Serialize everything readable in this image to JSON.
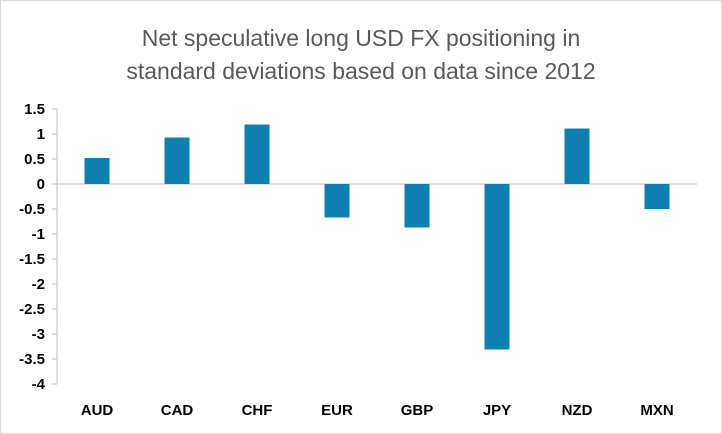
{
  "chart_data": {
    "type": "bar",
    "title_lines": [
      "Net speculative long USD FX positioning in",
      "standard deviations based on data since 2012"
    ],
    "categories": [
      "AUD",
      "CAD",
      "CHF",
      "EUR",
      "GBP",
      "JPY",
      "NZD",
      "MXN"
    ],
    "values": [
      0.52,
      0.93,
      1.19,
      -0.67,
      -0.87,
      -3.31,
      1.11,
      -0.5
    ],
    "ylim": [
      -4,
      1.5
    ],
    "ytick_step": 0.5,
    "ytick_labels": [
      "1.5",
      "1",
      "0.5",
      "0",
      "-0.5",
      "-1",
      "-1.5",
      "-2",
      "-2.5",
      "-3",
      "-3.5",
      "-4"
    ],
    "xlabel": "",
    "ylabel": "",
    "grid": false,
    "legend": "none",
    "bar_color": "#0e7fb0"
  }
}
